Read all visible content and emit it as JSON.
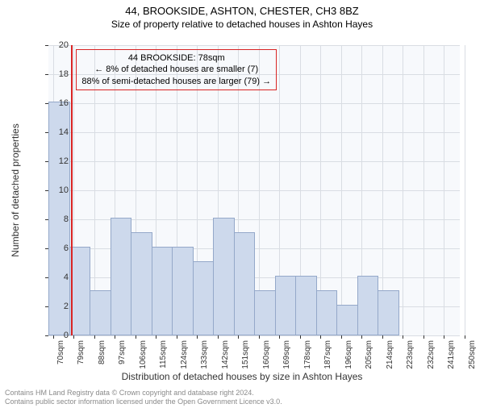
{
  "title": "44, BROOKSIDE, ASHTON, CHESTER, CH3 8BZ",
  "subtitle": "Size of property relative to detached houses in Ashton Hayes",
  "ylabel": "Number of detached properties",
  "xlabel": "Distribution of detached houses by size in Ashton Hayes",
  "chart": {
    "type": "bar",
    "background_color": "#f7f9fc",
    "grid_color": "#d9dde3",
    "bar_fill": "#cdd9ec",
    "bar_border": "#94a8c9",
    "xlim_min": 68,
    "xlim_max": 248,
    "ylim_min": 0,
    "ylim_max": 20,
    "ytick_step": 2,
    "xtick_start": 70,
    "xtick_step": 9,
    "xtick_count": 21,
    "xtick_suffix": "sqm",
    "bar_bin_width": 9,
    "bins": [
      {
        "start": 68,
        "count": 16
      },
      {
        "start": 77,
        "count": 6
      },
      {
        "start": 86,
        "count": 3
      },
      {
        "start": 95,
        "count": 8
      },
      {
        "start": 104,
        "count": 7
      },
      {
        "start": 113,
        "count": 6
      },
      {
        "start": 122,
        "count": 6
      },
      {
        "start": 131,
        "count": 5
      },
      {
        "start": 140,
        "count": 8
      },
      {
        "start": 149,
        "count": 7
      },
      {
        "start": 158,
        "count": 3
      },
      {
        "start": 167,
        "count": 4
      },
      {
        "start": 176,
        "count": 4
      },
      {
        "start": 185,
        "count": 3
      },
      {
        "start": 194,
        "count": 2
      },
      {
        "start": 203,
        "count": 4
      },
      {
        "start": 212,
        "count": 3
      }
    ],
    "marker": {
      "x": 78,
      "color": "#d92424"
    },
    "annotation": {
      "line1": "44 BROOKSIDE: 78sqm",
      "line2": "← 8% of detached houses are smaller (7)",
      "line3": "88% of semi-detached houses are larger (79) →",
      "border_color": "#d92424"
    }
  },
  "footer_line1": "Contains HM Land Registry data © Crown copyright and database right 2024.",
  "footer_line2": "Contains public sector information licensed under the Open Government Licence v3.0."
}
